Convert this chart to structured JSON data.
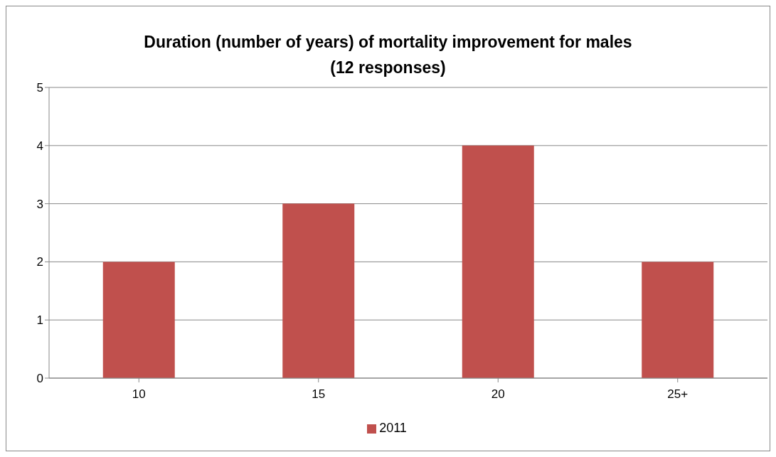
{
  "chart_data": {
    "type": "bar",
    "title": "Duration (number of years) of mortality improvement for males\n(12 responses)",
    "categories": [
      "10",
      "15",
      "20",
      "25+"
    ],
    "series": [
      {
        "name": "2011",
        "color": "#c0504d",
        "values": [
          2,
          3,
          4,
          2
        ]
      }
    ],
    "ylim": [
      0,
      5
    ],
    "yticks": [
      0,
      1,
      2,
      3,
      4,
      5
    ],
    "grid": "y",
    "legend": "bottom"
  }
}
